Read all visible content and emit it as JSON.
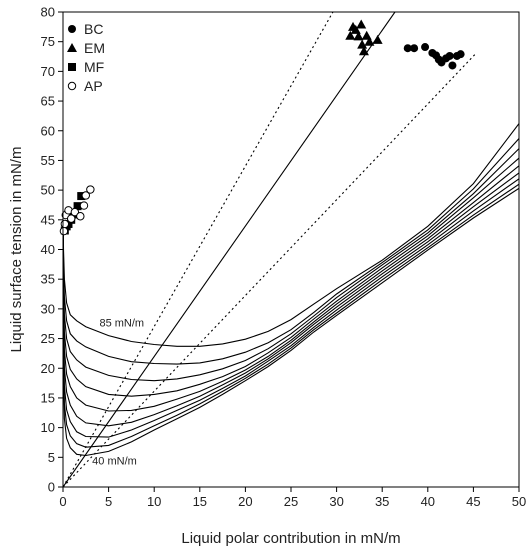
{
  "chart_data": {
    "type": "scatter",
    "title": "",
    "xlabel": "Liquid polar contribution in mN/m",
    "ylabel": "Liquid surface tension in mN/m",
    "xlim": [
      0,
      50
    ],
    "ylim": [
      0,
      80
    ],
    "xticks": [
      "0",
      "5",
      "10",
      "15",
      "20",
      "25",
      "30",
      "35",
      "40",
      "45",
      "50"
    ],
    "yticks": [
      "0",
      "5",
      "10",
      "15",
      "20",
      "25",
      "30",
      "35",
      "40",
      "45",
      "50",
      "55",
      "60",
      "65",
      "70",
      "75",
      "80"
    ],
    "grid": false,
    "legend_position": "top-left",
    "series": [
      {
        "name": "BC",
        "marker": "filled-circle",
        "points": [
          [
            37.8,
            73.9
          ],
          [
            38.5,
            73.9
          ],
          [
            39.7,
            74.1
          ],
          [
            40.5,
            73.1
          ],
          [
            40.9,
            72.7
          ],
          [
            41.2,
            72.0
          ],
          [
            41.5,
            71.5
          ],
          [
            42.0,
            72.2
          ],
          [
            42.4,
            72.6
          ],
          [
            42.7,
            71.0
          ],
          [
            43.2,
            72.6
          ],
          [
            43.6,
            72.9
          ]
        ]
      },
      {
        "name": "EM",
        "marker": "filled-triangle",
        "points": [
          [
            31.5,
            76.0
          ],
          [
            31.8,
            77.5
          ],
          [
            32.1,
            77.0
          ],
          [
            32.4,
            75.9
          ],
          [
            32.7,
            77.9
          ],
          [
            32.8,
            74.5
          ],
          [
            33.0,
            73.4
          ],
          [
            33.3,
            76.0
          ],
          [
            33.6,
            75.0
          ],
          [
            34.5,
            75.3
          ]
        ]
      },
      {
        "name": "MF",
        "marker": "filled-square",
        "points": [
          [
            0.2,
            43.2
          ],
          [
            0.4,
            43.9
          ],
          [
            0.6,
            44.3
          ],
          [
            0.9,
            45.0
          ],
          [
            1.2,
            45.9
          ],
          [
            1.6,
            47.3
          ],
          [
            2.0,
            49.0
          ]
        ]
      },
      {
        "name": "AP",
        "marker": "open-circle",
        "points": [
          [
            0.1,
            43.1
          ],
          [
            0.2,
            44.3
          ],
          [
            0.3,
            45.8
          ],
          [
            0.6,
            46.6
          ],
          [
            0.9,
            45.2
          ],
          [
            1.3,
            46.3
          ],
          [
            1.9,
            45.6
          ],
          [
            2.3,
            47.4
          ],
          [
            2.5,
            49.1
          ],
          [
            3.0,
            50.1
          ]
        ]
      }
    ],
    "reference_lines": [
      {
        "style": "solid",
        "points": [
          [
            0,
            0
          ],
          [
            36.4,
            80
          ]
        ]
      },
      {
        "style": "dotted",
        "points": [
          [
            0,
            0
          ],
          [
            29.6,
            80
          ]
        ]
      },
      {
        "style": "dotted",
        "points": [
          [
            0,
            0
          ],
          [
            45.2,
            72.9
          ]
        ]
      }
    ],
    "curves": {
      "style": "solid",
      "labels": [
        {
          "text": "85 mN/m",
          "x": 4.0,
          "y": 27.0
        },
        {
          "text": "40 mN/m",
          "x": 3.2,
          "y": 3.8
        }
      ],
      "family": [
        {
          "points": [
            [
              0.02,
              44
            ],
            [
              0.05,
              40
            ],
            [
              0.15,
              35
            ],
            [
              0.4,
              31
            ],
            [
              0.8,
              29
            ],
            [
              1.5,
              28
            ],
            [
              2.5,
              27
            ],
            [
              5,
              25.5
            ],
            [
              7.5,
              24.5
            ],
            [
              10,
              24
            ],
            [
              12.5,
              23.7
            ],
            [
              15,
              23.7
            ],
            [
              17.5,
              24.1
            ],
            [
              20,
              24.9
            ],
            [
              22.5,
              26.2
            ],
            [
              25,
              28.2
            ],
            [
              27.5,
              30.8
            ],
            [
              30,
              33.4
            ],
            [
              35,
              38.2
            ],
            [
              40,
              43.9
            ],
            [
              45,
              51.1
            ],
            [
              50,
              61.2
            ]
          ]
        },
        {
          "points": [
            [
              0.02,
              44
            ],
            [
              0.05,
              38
            ],
            [
              0.15,
              32
            ],
            [
              0.4,
              28
            ],
            [
              0.8,
              25.8
            ],
            [
              1.5,
              24.6
            ],
            [
              2.5,
              23.6
            ],
            [
              5,
              22
            ],
            [
              7.5,
              21.1
            ],
            [
              10,
              20.8
            ],
            [
              12.5,
              20.7
            ],
            [
              15,
              20.9
            ],
            [
              17.5,
              21.6
            ],
            [
              20,
              22.7
            ],
            [
              22.5,
              24.3
            ],
            [
              25,
              26.5
            ],
            [
              27.5,
              29.4
            ],
            [
              30,
              32.5
            ],
            [
              35,
              37.8
            ],
            [
              40,
              43.3
            ],
            [
              45,
              50.2
            ],
            [
              50,
              58.7
            ]
          ]
        },
        {
          "points": [
            [
              0.02,
              44
            ],
            [
              0.05,
              36
            ],
            [
              0.15,
              29
            ],
            [
              0.4,
              25
            ],
            [
              0.8,
              22.8
            ],
            [
              1.5,
              21.4
            ],
            [
              2.5,
              20.2
            ],
            [
              5,
              18.8
            ],
            [
              7.5,
              18.1
            ],
            [
              10,
              17.9
            ],
            [
              12.5,
              18.2
            ],
            [
              15,
              18.9
            ],
            [
              17.5,
              19.9
            ],
            [
              20,
              21.3
            ],
            [
              22.5,
              23.3
            ],
            [
              25,
              25.8
            ],
            [
              27.5,
              28.8
            ],
            [
              30,
              31.9
            ],
            [
              35,
              37.4
            ],
            [
              40,
              42.8
            ],
            [
              45,
              49.4
            ],
            [
              50,
              57.0
            ]
          ]
        },
        {
          "points": [
            [
              0.02,
              44
            ],
            [
              0.05,
              34
            ],
            [
              0.15,
              26
            ],
            [
              0.4,
              22
            ],
            [
              0.8,
              19.8
            ],
            [
              1.5,
              18.2
            ],
            [
              2.5,
              16.9
            ],
            [
              5,
              15.6
            ],
            [
              7.5,
              15.3
            ],
            [
              10,
              15.6
            ],
            [
              12.5,
              16.2
            ],
            [
              15,
              17.3
            ],
            [
              17.5,
              18.6
            ],
            [
              20,
              20.3
            ],
            [
              22.5,
              22.6
            ],
            [
              25,
              25.2
            ],
            [
              27.5,
              28.3
            ],
            [
              30,
              31.3
            ],
            [
              35,
              36.9
            ],
            [
              40,
              42.3
            ],
            [
              45,
              48.7
            ],
            [
              50,
              55.4
            ]
          ]
        },
        {
          "points": [
            [
              0.02,
              44
            ],
            [
              0.05,
              32
            ],
            [
              0.15,
              23
            ],
            [
              0.4,
              19
            ],
            [
              0.8,
              16.9
            ],
            [
              1.5,
              15.0
            ],
            [
              2.5,
              13.8
            ],
            [
              5,
              12.8
            ],
            [
              7.5,
              12.9
            ],
            [
              10,
              13.6
            ],
            [
              12.5,
              14.8
            ],
            [
              15,
              16.1
            ],
            [
              17.5,
              17.8
            ],
            [
              20,
              19.7
            ],
            [
              22.5,
              22.0
            ],
            [
              25,
              24.7
            ],
            [
              27.5,
              27.8
            ],
            [
              30,
              30.8
            ],
            [
              35,
              36.4
            ],
            [
              40,
              41.8
            ],
            [
              45,
              47.9
            ],
            [
              50,
              54.1
            ]
          ]
        },
        {
          "points": [
            [
              0.02,
              44
            ],
            [
              0.05,
              29
            ],
            [
              0.15,
              20
            ],
            [
              0.4,
              16
            ],
            [
              0.8,
              13.8
            ],
            [
              1.5,
              11.9
            ],
            [
              2.5,
              10.8
            ],
            [
              5,
              10.3
            ],
            [
              7.5,
              10.9
            ],
            [
              10,
              12.2
            ],
            [
              12.5,
              13.7
            ],
            [
              15,
              15.3
            ],
            [
              17.5,
              17.2
            ],
            [
              20,
              19.2
            ],
            [
              22.5,
              21.6
            ],
            [
              25,
              24.3
            ],
            [
              27.5,
              27.4
            ],
            [
              30,
              30.3
            ],
            [
              35,
              35.9
            ],
            [
              40,
              41.3
            ],
            [
              45,
              47.2
            ],
            [
              50,
              52.9
            ]
          ]
        },
        {
          "points": [
            [
              0.02,
              44
            ],
            [
              0.05,
              26
            ],
            [
              0.15,
              17
            ],
            [
              0.4,
              13
            ],
            [
              0.8,
              11.0
            ],
            [
              1.5,
              9.3
            ],
            [
              2.5,
              8.5
            ],
            [
              5,
              8.4
            ],
            [
              7.5,
              9.6
            ],
            [
              10,
              11.2
            ],
            [
              12.5,
              12.9
            ],
            [
              15,
              14.6
            ],
            [
              17.5,
              16.6
            ],
            [
              20,
              18.7
            ],
            [
              22.5,
              21.2
            ],
            [
              25,
              23.8
            ],
            [
              27.5,
              26.9
            ],
            [
              30,
              29.8
            ],
            [
              35,
              35.4
            ],
            [
              40,
              40.8
            ],
            [
              45,
              46.5
            ],
            [
              50,
              51.9
            ]
          ]
        },
        {
          "points": [
            [
              0.02,
              44
            ],
            [
              0.05,
              23
            ],
            [
              0.15,
              14
            ],
            [
              0.4,
              10.5
            ],
            [
              0.8,
              8.6
            ],
            [
              1.5,
              7.3
            ],
            [
              2.5,
              6.7
            ],
            [
              5,
              7.0
            ],
            [
              7.5,
              8.5
            ],
            [
              10,
              10.3
            ],
            [
              12.5,
              12.1
            ],
            [
              15,
              14.0
            ],
            [
              17.5,
              16.1
            ],
            [
              20,
              18.3
            ],
            [
              22.5,
              20.7
            ],
            [
              25,
              23.4
            ],
            [
              27.5,
              26.5
            ],
            [
              30,
              29.3
            ],
            [
              35,
              34.9
            ],
            [
              40,
              40.3
            ],
            [
              45,
              45.8
            ],
            [
              50,
              51.0
            ]
          ]
        },
        {
          "points": [
            [
              0.02,
              44
            ],
            [
              0.05,
              20
            ],
            [
              0.15,
              11.5
            ],
            [
              0.4,
              8.2
            ],
            [
              0.8,
              6.6
            ],
            [
              1.5,
              5.5
            ],
            [
              2.5,
              5.3
            ],
            [
              5,
              6.0
            ],
            [
              7.5,
              7.6
            ],
            [
              10,
              9.6
            ],
            [
              12.5,
              11.5
            ],
            [
              15,
              13.4
            ],
            [
              17.5,
              15.6
            ],
            [
              20,
              17.9
            ],
            [
              22.5,
              20.3
            ],
            [
              25,
              23.0
            ],
            [
              27.5,
              26.1
            ],
            [
              30,
              28.9
            ],
            [
              35,
              34.4
            ],
            [
              40,
              39.9
            ],
            [
              45,
              45.3
            ],
            [
              50,
              50.3
            ]
          ]
        },
        {
          "points": [
            [
              0,
              0
            ],
            [
              5,
              10
            ],
            [
              10,
              20
            ],
            [
              15,
              30
            ],
            [
              20,
              40
            ],
            [
              25,
              50
            ],
            [
              30,
              60
            ],
            [
              35,
              70
            ],
            [
              40,
              80
            ]
          ],
          "hidden": true
        }
      ]
    }
  }
}
